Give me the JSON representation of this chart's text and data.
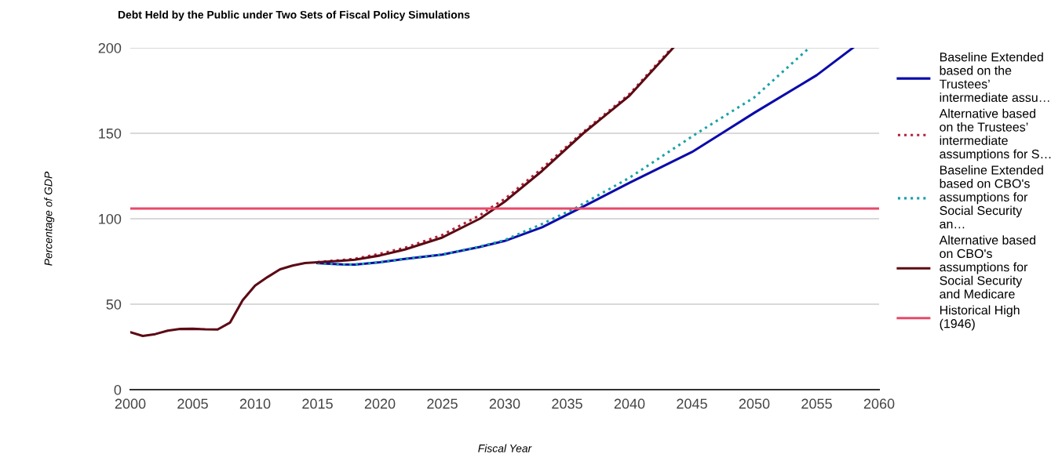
{
  "chart_data": {
    "type": "line",
    "title": "Debt Held by the Public under Two Sets of Fiscal Policy Simulations",
    "xlabel": "Fiscal Year",
    "ylabel": "Percentage of GDP",
    "xlim": [
      2000,
      2060
    ],
    "xticks": [
      2000,
      2005,
      2010,
      2015,
      2020,
      2025,
      2030,
      2035,
      2040,
      2045,
      2050,
      2055,
      2060
    ],
    "ylim": [
      0,
      200
    ],
    "yticks": [
      0,
      50,
      100,
      150,
      200
    ],
    "grid": "y",
    "legend": "right",
    "series": [
      {
        "name": "Baseline Extended based on the Trustees’ intermediate assu…",
        "color": "#0b0bab",
        "line_style": "solid",
        "x": [
          2015,
          2016,
          2017,
          2018,
          2020,
          2022,
          2025,
          2028,
          2030,
          2033,
          2036,
          2040,
          2045,
          2047.4,
          2050,
          2055,
          2057.9
        ],
        "values": [
          74,
          73.6,
          73.3,
          73.2,
          74.5,
          76.5,
          79,
          83.5,
          87,
          95,
          106,
          121,
          139,
          150,
          162,
          184,
          200
        ]
      },
      {
        "name": "Alternative based on the Trustees’ intermediate assumptions for S…",
        "color": "#b5203a",
        "line_style": "dotted",
        "x": [
          2015,
          2016,
          2017,
          2018,
          2020,
          2022,
          2025,
          2028,
          2029,
          2030,
          2033,
          2036,
          2040,
          2043.4
        ],
        "values": [
          74.7,
          75.3,
          75.9,
          76.6,
          79.5,
          83,
          90.5,
          102,
          107,
          111.5,
          129.5,
          149,
          173,
          200
        ]
      },
      {
        "name": "Baseline Extended based on CBO's assumptions for Social Security an…",
        "color": "#1aa1a8",
        "line_style": "dotted",
        "x": [
          2015,
          2016,
          2017,
          2018,
          2020,
          2022,
          2025,
          2028,
          2030,
          2033,
          2035.6,
          2040,
          2045.4,
          2050,
          2054.4
        ],
        "values": [
          74,
          73.6,
          73.3,
          73.2,
          74.5,
          76.5,
          79,
          83.7,
          87.5,
          97,
          106,
          124,
          150,
          171,
          200
        ]
      },
      {
        "name": "Alternative based on CBO's assumptions for Social Security and Medicare",
        "color": "#5c0a14",
        "line_style": "solid",
        "x": [
          2000,
          2001,
          2002,
          2003,
          2004,
          2005,
          2006,
          2007,
          2008,
          2009,
          2010,
          2011,
          2012,
          2013,
          2014,
          2015,
          2016,
          2017,
          2018,
          2020,
          2022,
          2025,
          2028,
          2029.2,
          2030,
          2033,
          2036.3,
          2040,
          2043.5
        ],
        "values": [
          33.6,
          31.4,
          32.5,
          34.5,
          35.5,
          35.6,
          35.3,
          35.2,
          39.3,
          52.3,
          60.9,
          65.9,
          70.4,
          72.6,
          74.1,
          74.5,
          75,
          75.5,
          76,
          78.5,
          82,
          89,
          100,
          106,
          110,
          128,
          150,
          172,
          200
        ]
      },
      {
        "name": "Historical High (1946)",
        "color": "#e8496a",
        "line_style": "solid",
        "x": [
          2000,
          2060
        ],
        "values": [
          106,
          106
        ]
      }
    ]
  }
}
